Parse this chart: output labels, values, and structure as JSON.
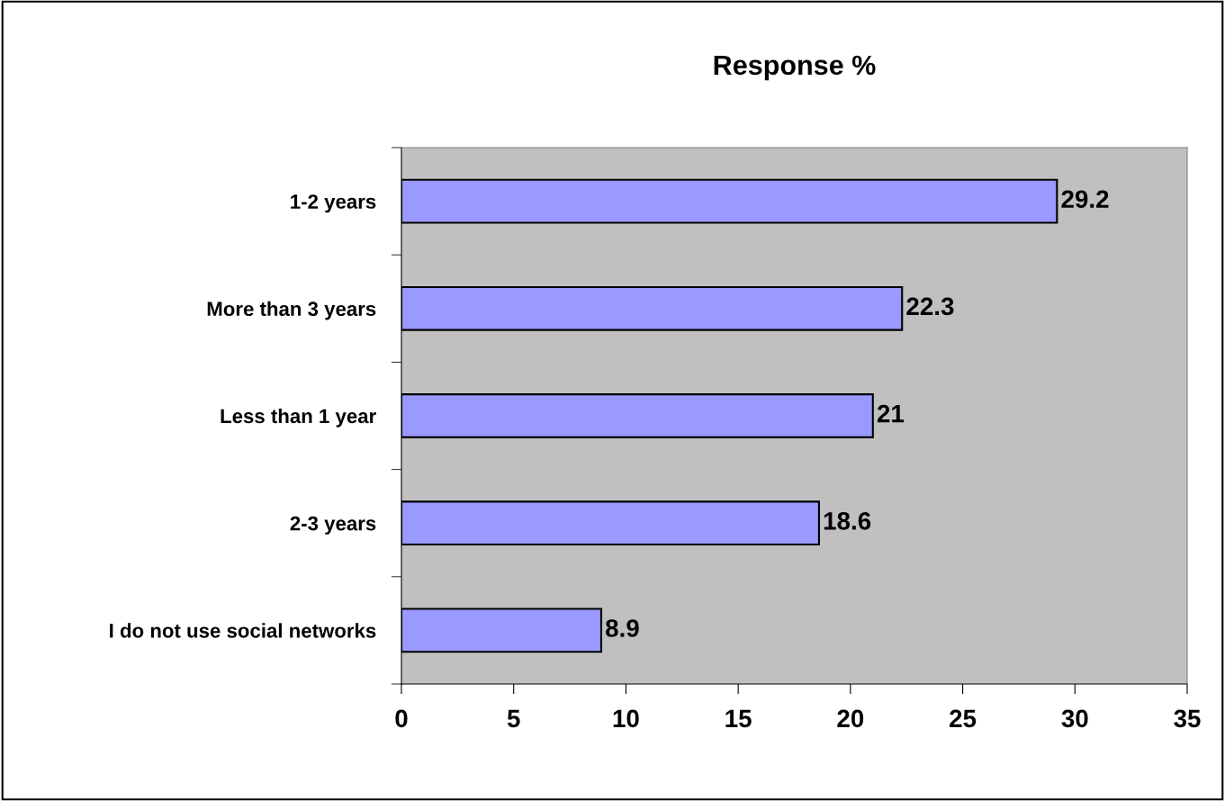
{
  "chart_data": {
    "type": "bar",
    "orientation": "horizontal",
    "title": "Response %",
    "categories": [
      "1-2 years",
      "More than 3 years",
      "Less than 1 year",
      "2-3 years",
      "I do not use social networks"
    ],
    "values": [
      29.2,
      22.3,
      21,
      18.6,
      8.9
    ],
    "color": "#9999ff",
    "data_labels": true,
    "xlim": [
      0,
      35
    ],
    "xticks": [
      0,
      5,
      10,
      15,
      20,
      25,
      30,
      35
    ],
    "grid": false,
    "legend": false
  }
}
